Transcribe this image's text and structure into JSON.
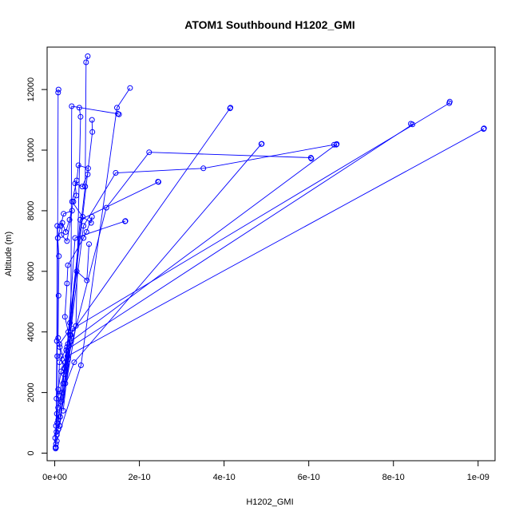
{
  "chart_data": {
    "type": "line",
    "title": "ATOM1 Southbound H1202_GMI",
    "xlabel": "H1202_GMI",
    "ylabel": "Altitude (m)",
    "xlim": [
      -1.8e-11,
      1.04e-09
    ],
    "ylim": [
      -250,
      13400
    ],
    "x_ticks": [
      {
        "value": 0,
        "label": "0e+00"
      },
      {
        "value": 2e-10,
        "label": "2e-10"
      },
      {
        "value": 4e-10,
        "label": "4e-10"
      },
      {
        "value": 6e-10,
        "label": "6e-10"
      },
      {
        "value": 8e-10,
        "label": "8e-10"
      },
      {
        "value": 1e-09,
        "label": "1e-09"
      }
    ],
    "y_ticks": [
      {
        "value": 0,
        "label": "0"
      },
      {
        "value": 2000,
        "label": "2000"
      },
      {
        "value": 4000,
        "label": "4000"
      },
      {
        "value": 6000,
        "label": "6000"
      },
      {
        "value": 8000,
        "label": "8000"
      },
      {
        "value": 10000,
        "label": "10000"
      },
      {
        "value": 12000,
        "label": "12000"
      }
    ],
    "grid": false,
    "legend": "none",
    "color": "#0000ff",
    "marker": "open-circle",
    "series": [
      {
        "x": [
          2e-12,
          3e-12,
          2e-12,
          1e-12,
          3e-12,
          5e-12,
          4e-12,
          8e-12,
          1.5e-11,
          2.5e-11,
          1.2e-11,
          8e-12,
          9e-12,
          1e-11,
          7e-12,
          1.4e-11,
          2.1e-11,
          4.1e-11,
          2.9e-11,
          1.6e-11,
          1.8e-11,
          2.6e-11,
          3.5e-11,
          4.4e-11,
          5.1e-11,
          4.8e-11,
          6.5e-11,
          7.8e-11,
          7.9e-11,
          5.6e-11,
          5.2e-11,
          4.1e-11,
          6.6e-11,
          8.6e-11,
          8.8e-11,
          7.5e-11,
          6.8e-11,
          3.1e-11,
          2.9e-11,
          2.4e-11,
          3.2e-11,
          1.1e-11,
          1.4e-11,
          2.2e-11,
          2e-11,
          8e-12
        ],
        "y": [
          150,
          180,
          200,
          500,
          900,
          1300,
          1800,
          2100,
          2700,
          3000,
          3500,
          3800,
          5200,
          6500,
          7100,
          7500,
          7900,
          8000,
          7000,
          7200,
          7600,
          7300,
          7700,
          8300,
          8500,
          8900,
          8800,
          9200,
          9400,
          9500,
          9000,
          8300,
          7800,
          7600,
          7800,
          7300,
          7100,
          6200,
          5600,
          4500,
          4000,
          3600,
          3200,
          2800,
          2300,
          1500
        ]
      },
      {
        "x": [
          5e-12,
          7.2e-11,
          7.4e-11,
          7.8e-11
        ],
        "y": [
          600,
          8800,
          12900,
          13100
        ]
      },
      {
        "x": [
          4e-12,
          6e-12,
          8e-12,
          9e-12
        ],
        "y": [
          700,
          3200,
          11900,
          12000
        ]
      },
      {
        "x": [
          5e-12,
          6.2e-11,
          1.47e-10,
          1.78e-10
        ],
        "y": [
          400,
          2900,
          11400,
          12050
        ]
      },
      {
        "x": [
          9e-12,
          5e-11,
          6.1e-11,
          5.8e-11
        ],
        "y": [
          800,
          4200,
          11100,
          11400
        ]
      },
      {
        "x": [
          1.2e-11,
          3.8e-11,
          4e-11,
          1.49e-10,
          1.52e-10
        ],
        "y": [
          900,
          3900,
          11450,
          11200,
          11180
        ]
      },
      {
        "x": [
          8e-12,
          3.1e-11,
          8.9e-11,
          8.8e-11
        ],
        "y": [
          1100,
          3600,
          10600,
          11000
        ]
      },
      {
        "x": [
          1.3e-11,
          3.6e-11,
          4.15e-10,
          4.14e-10
        ],
        "y": [
          1200,
          3900,
          11400,
          11380
        ]
      },
      {
        "x": [
          2e-11,
          4.2e-11,
          9.32e-10,
          9.33e-10
        ],
        "y": [
          1400,
          4100,
          11550,
          11600
        ]
      },
      {
        "x": [
          1.5e-11,
          2.7e-11,
          8.45e-10,
          8.41e-10
        ],
        "y": [
          1700,
          3400,
          10850,
          10870
        ]
      },
      {
        "x": [
          1e-11,
          3e-11,
          1.013e-09,
          1.014e-09
        ],
        "y": [
          1900,
          3200,
          10700,
          10720
        ]
      },
      {
        "x": [
          2.5e-11,
          3.9e-11,
          6.66e-10,
          6.65e-10
        ],
        "y": [
          2300,
          3700,
          10200,
          10180
        ]
      },
      {
        "x": [
          1.8e-11,
          4.6e-11,
          4.88e-10,
          4.89e-10
        ],
        "y": [
          2000,
          3000,
          10200,
          10210
        ]
      },
      {
        "x": [
          2.2e-11,
          1.22e-10,
          2.23e-10,
          6.05e-10,
          6.06e-10
        ],
        "y": [
          2600,
          8100,
          9930,
          9750,
          9720
        ]
      },
      {
        "x": [
          2.8e-11,
          6.8e-11,
          1.44e-10,
          3.51e-10,
          6.6e-10
        ],
        "y": [
          2900,
          7500,
          9250,
          9400,
          10180
        ]
      },
      {
        "x": [
          3.2e-11,
          6e-11,
          2.45e-10,
          2.44e-10
        ],
        "y": [
          3100,
          7700,
          8950,
          8960
        ]
      },
      {
        "x": [
          2.6e-11,
          4.8e-11,
          1.67e-10,
          1.66e-10
        ],
        "y": [
          2700,
          7100,
          7660,
          7650
        ]
      },
      {
        "x": [
          3e-12,
          5e-12,
          6e-12
        ],
        "y": [
          300,
          3700,
          7500
        ]
      },
      {
        "x": [
          6e-12,
          1.1e-11,
          2.9e-11,
          3.6e-11,
          5.2e-11,
          7.6e-11,
          8.1e-11
        ],
        "y": [
          1000,
          3000,
          3500,
          4300,
          6000,
          5700,
          6900
        ]
      }
    ]
  }
}
